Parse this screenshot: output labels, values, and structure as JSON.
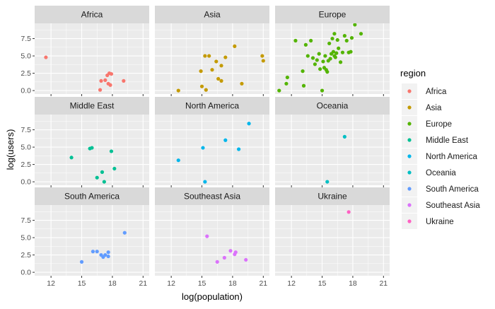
{
  "chart_data": {
    "type": "scatter",
    "title": "",
    "xlabel": "log(population)",
    "ylabel": "log(users)",
    "xlim": [
      10.4,
      21.6
    ],
    "ylim": [
      -0.5,
      9.7
    ],
    "x_ticks": [
      12,
      15,
      18,
      21
    ],
    "y_ticks": [
      0.0,
      2.5,
      5.0,
      7.5
    ],
    "y_tick_labels": [
      "0.0",
      "2.5",
      "5.0",
      "7.5"
    ],
    "grid": true,
    "facet_layout": [
      3,
      3
    ],
    "legend": {
      "title": "region",
      "placement": "right"
    },
    "series": [
      {
        "name": "Africa",
        "color": "#F8766D",
        "points": [
          [
            11.5,
            4.8
          ],
          [
            16.8,
            0.1
          ],
          [
            16.9,
            1.4
          ],
          [
            17.3,
            1.5
          ],
          [
            17.5,
            2.2
          ],
          [
            17.6,
            1.0
          ],
          [
            17.7,
            2.5
          ],
          [
            17.8,
            0.8
          ],
          [
            17.9,
            2.4
          ],
          [
            19.1,
            1.4
          ]
        ]
      },
      {
        "name": "Asia",
        "color": "#C49A00",
        "points": [
          [
            12.7,
            0.0
          ],
          [
            14.9,
            2.8
          ],
          [
            15.0,
            0.6
          ],
          [
            15.3,
            5.0
          ],
          [
            15.4,
            0.1
          ],
          [
            15.7,
            5.0
          ],
          [
            16.0,
            3.0
          ],
          [
            16.4,
            4.2
          ],
          [
            16.6,
            1.7
          ],
          [
            16.9,
            1.4
          ],
          [
            16.9,
            3.6
          ],
          [
            17.3,
            4.8
          ],
          [
            18.2,
            6.4
          ],
          [
            18.9,
            1.0
          ],
          [
            20.9,
            5.0
          ],
          [
            21.0,
            4.3
          ]
        ]
      },
      {
        "name": "Europe",
        "color": "#53B400",
        "points": [
          [
            10.8,
            0.0
          ],
          [
            11.5,
            1.0
          ],
          [
            11.6,
            1.9
          ],
          [
            12.4,
            7.2
          ],
          [
            13.1,
            2.8
          ],
          [
            13.2,
            0.7
          ],
          [
            13.4,
            6.6
          ],
          [
            13.6,
            5.0
          ],
          [
            13.9,
            7.2
          ],
          [
            14.1,
            4.7
          ],
          [
            14.3,
            3.8
          ],
          [
            14.5,
            4.4
          ],
          [
            14.7,
            5.3
          ],
          [
            14.8,
            3.1
          ],
          [
            15.0,
            0.0
          ],
          [
            15.1,
            4.2
          ],
          [
            15.2,
            3.3
          ],
          [
            15.3,
            5.0
          ],
          [
            15.4,
            3.0
          ],
          [
            15.5,
            2.7
          ],
          [
            15.6,
            4.3
          ],
          [
            15.7,
            6.8
          ],
          [
            15.8,
            4.6
          ],
          [
            15.9,
            5.3
          ],
          [
            16.0,
            7.5
          ],
          [
            16.1,
            5.6
          ],
          [
            16.2,
            5.0
          ],
          [
            16.2,
            8.2
          ],
          [
            16.3,
            4.8
          ],
          [
            16.4,
            5.4
          ],
          [
            16.5,
            7.3
          ],
          [
            16.6,
            6.1
          ],
          [
            16.8,
            4.1
          ],
          [
            17.0,
            5.5
          ],
          [
            17.2,
            7.9
          ],
          [
            17.4,
            7.2
          ],
          [
            17.6,
            5.5
          ],
          [
            17.8,
            5.6
          ],
          [
            17.9,
            7.6
          ],
          [
            18.2,
            9.5
          ],
          [
            18.8,
            8.2
          ]
        ]
      },
      {
        "name": "Middle East",
        "color": "#00C094",
        "points": [
          [
            14.0,
            3.5
          ],
          [
            15.8,
            4.8
          ],
          [
            16.0,
            4.9
          ],
          [
            16.5,
            0.6
          ],
          [
            17.0,
            1.4
          ],
          [
            17.2,
            0.0
          ],
          [
            17.9,
            4.4
          ],
          [
            18.2,
            1.9
          ]
        ]
      },
      {
        "name": "North America",
        "color": "#00B6EB",
        "points": [
          [
            12.7,
            3.1
          ],
          [
            15.1,
            4.9
          ],
          [
            15.3,
            0.0
          ],
          [
            17.3,
            6.0
          ],
          [
            18.6,
            4.7
          ],
          [
            19.6,
            8.4
          ]
        ]
      },
      {
        "name": "Oceania",
        "color": "#00BFC4",
        "points": [
          [
            15.5,
            0.0
          ],
          [
            17.2,
            6.5
          ]
        ]
      },
      {
        "name": "South America",
        "color": "#619CFF",
        "points": [
          [
            15.0,
            1.5
          ],
          [
            16.1,
            3.0
          ],
          [
            16.5,
            3.0
          ],
          [
            16.9,
            2.5
          ],
          [
            17.1,
            2.2
          ],
          [
            17.3,
            2.5
          ],
          [
            17.6,
            2.3
          ],
          [
            17.6,
            2.9
          ],
          [
            19.2,
            5.7
          ]
        ]
      },
      {
        "name": "Southeast Asia",
        "color": "#DB72FB",
        "points": [
          [
            15.5,
            5.2
          ],
          [
            16.5,
            1.5
          ],
          [
            17.2,
            2.1
          ],
          [
            17.8,
            3.1
          ],
          [
            18.2,
            2.6
          ],
          [
            18.3,
            2.9
          ],
          [
            19.3,
            1.8
          ]
        ]
      },
      {
        "name": "Ukraine",
        "color": "#FF61C3",
        "points": [
          [
            17.6,
            8.7
          ]
        ]
      }
    ]
  }
}
